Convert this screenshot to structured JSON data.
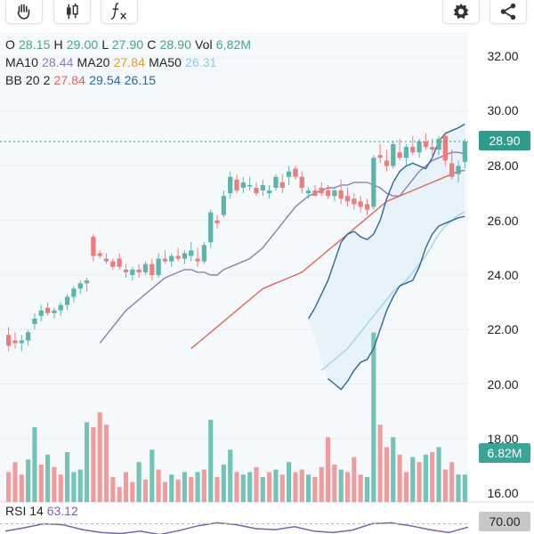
{
  "toolbar": {
    "buttons": [
      {
        "name": "drawing-hand-tool",
        "icon": "hand-icon"
      },
      {
        "name": "chart-type",
        "icon": "candlestick-icon"
      },
      {
        "name": "indicators",
        "icon": "function-icon"
      },
      {
        "name": "settings",
        "icon": "gear-icon"
      },
      {
        "name": "share",
        "icon": "share-icon"
      }
    ]
  },
  "legend": {
    "o_label": "O",
    "o_value": "28.15",
    "h_label": "H",
    "h_value": "29.00",
    "l_label": "L",
    "l_value": "27.90",
    "c_label": "C",
    "c_value": "28.90",
    "vol_label": "Vol",
    "vol_value": "6,82M",
    "ma10_label": "MA10",
    "ma10_value": "28.44",
    "ma20_label": "MA20",
    "ma20_value": "27.84",
    "ma50_label": "MA50",
    "ma50_value": "26.31",
    "bb_label": "BB 20 2",
    "bb_mid": "27.84",
    "bb_upper": "29.54",
    "bb_lower": "26.15",
    "rsi_label": "RSI 14",
    "rsi_value": "63.12"
  },
  "colors": {
    "up": "#5cb5aa",
    "down": "#ee7c7c",
    "up_volume": "#74c3b7",
    "down_volume": "#f19c9c",
    "ma10": "#8f7bb8",
    "ma20": "#e0665a",
    "ma50": "#9fd3e9",
    "bb_band": "#2c6796",
    "bb_fill": "#e7f1f8",
    "rsi": "#7d5fb0",
    "price_badge": "#2d9c8c",
    "volume_badge": "#3aa597"
  },
  "price_axis": {
    "labels": [
      "32.00",
      "30.00",
      "28.00",
      "26.00",
      "24.00",
      "22.00",
      "20.00",
      "18.00",
      "16.00"
    ],
    "current_price": "28.90",
    "current_volume": "6.82M",
    "rsi_level": "70.00"
  },
  "chart_data": {
    "type": "candlestick",
    "ylim": [
      16.0,
      33.0
    ],
    "candles": [
      [
        21.8,
        22.1,
        21.2,
        21.4
      ],
      [
        21.6,
        21.9,
        21.3,
        21.5
      ],
      [
        21.5,
        21.8,
        21.2,
        21.6
      ],
      [
        21.6,
        22.0,
        21.4,
        21.9
      ],
      [
        22.2,
        22.6,
        22.0,
        22.4
      ],
      [
        22.5,
        22.9,
        22.3,
        22.7
      ],
      [
        22.8,
        23.0,
        22.5,
        22.6
      ],
      [
        22.6,
        22.8,
        22.4,
        22.7
      ],
      [
        22.7,
        23.0,
        22.5,
        22.9
      ],
      [
        22.9,
        23.3,
        22.7,
        23.2
      ],
      [
        23.2,
        23.6,
        23.0,
        23.5
      ],
      [
        23.5,
        23.8,
        23.3,
        23.7
      ],
      [
        23.7,
        23.9,
        23.4,
        23.8
      ],
      [
        25.4,
        25.5,
        24.5,
        24.7
      ],
      [
        24.8,
        24.9,
        24.6,
        24.7
      ],
      [
        24.6,
        24.8,
        24.4,
        24.5
      ],
      [
        24.5,
        24.6,
        24.2,
        24.3
      ],
      [
        24.6,
        24.8,
        24.2,
        24.3
      ],
      [
        24.2,
        24.4,
        23.9,
        24.1
      ],
      [
        24.0,
        24.3,
        23.8,
        24.2
      ],
      [
        24.2,
        24.4,
        23.9,
        24.1
      ],
      [
        24.1,
        24.5,
        24.0,
        24.4
      ],
      [
        24.4,
        24.6,
        23.8,
        24.0
      ],
      [
        24.0,
        24.8,
        23.9,
        24.6
      ],
      [
        24.6,
        24.9,
        24.4,
        24.5
      ],
      [
        24.5,
        24.8,
        24.3,
        24.7
      ],
      [
        24.7,
        25.0,
        24.5,
        24.6
      ],
      [
        24.6,
        24.9,
        24.4,
        24.8
      ],
      [
        24.7,
        25.2,
        24.5,
        24.9
      ],
      [
        24.6,
        25.0,
        24.3,
        24.5
      ],
      [
        24.5,
        25.2,
        24.4,
        25.1
      ],
      [
        25.2,
        26.4,
        25.0,
        26.3
      ],
      [
        26.0,
        26.2,
        25.7,
        25.9
      ],
      [
        26.2,
        27.1,
        26.1,
        26.9
      ],
      [
        27.0,
        27.8,
        26.8,
        27.6
      ],
      [
        27.5,
        27.7,
        27.0,
        27.1
      ],
      [
        27.2,
        27.6,
        27.0,
        27.4
      ],
      [
        27.3,
        27.6,
        27.1,
        27.3
      ],
      [
        27.2,
        27.4,
        26.9,
        27.0
      ],
      [
        27.1,
        27.5,
        26.9,
        27.3
      ],
      [
        27.0,
        27.3,
        26.8,
        27.1
      ],
      [
        27.2,
        27.7,
        27.1,
        27.6
      ],
      [
        27.4,
        27.7,
        27.0,
        27.2
      ],
      [
        27.6,
        28.0,
        27.3,
        27.8
      ],
      [
        27.9,
        28.0,
        27.5,
        27.6
      ],
      [
        27.6,
        27.8,
        27.0,
        27.2
      ],
      [
        27.0,
        27.2,
        26.8,
        27.1
      ],
      [
        27.1,
        27.3,
        26.9,
        26.9
      ],
      [
        27.2,
        27.4,
        26.9,
        27.0
      ],
      [
        27.1,
        27.3,
        26.8,
        26.9
      ],
      [
        26.9,
        27.2,
        26.7,
        27.1
      ],
      [
        27.1,
        27.5,
        26.6,
        26.8
      ],
      [
        26.9,
        27.2,
        26.5,
        26.7
      ],
      [
        26.8,
        27.0,
        26.4,
        26.6
      ],
      [
        26.7,
        26.9,
        26.3,
        26.5
      ],
      [
        26.6,
        26.8,
        26.2,
        26.4
      ],
      [
        26.5,
        28.4,
        26.4,
        28.3
      ],
      [
        28.4,
        28.8,
        28.1,
        28.3
      ],
      [
        28.2,
        28.6,
        27.8,
        28.0
      ],
      [
        28.0,
        28.9,
        27.9,
        28.8
      ],
      [
        28.5,
        29.0,
        28.2,
        28.3
      ],
      [
        28.3,
        28.8,
        28.0,
        28.7
      ],
      [
        28.7,
        29.1,
        28.4,
        28.5
      ],
      [
        28.5,
        29.0,
        28.3,
        28.9
      ],
      [
        28.9,
        29.2,
        28.6,
        28.7
      ],
      [
        28.7,
        29.0,
        28.3,
        28.6
      ],
      [
        28.6,
        29.1,
        28.4,
        29.0
      ],
      [
        29.1,
        29.2,
        28.0,
        28.2
      ],
      [
        28.1,
        28.6,
        27.5,
        27.6
      ],
      [
        27.7,
        28.2,
        27.4,
        28.0
      ],
      [
        28.15,
        29.0,
        27.9,
        28.9
      ]
    ],
    "volumes": [
      [
        1.2,
        1
      ],
      [
        1.6,
        1
      ],
      [
        1.1,
        1
      ],
      [
        1.7,
        0
      ],
      [
        3.0,
        0
      ],
      [
        1.5,
        1
      ],
      [
        1.9,
        0
      ],
      [
        1.4,
        1
      ],
      [
        1.1,
        1
      ],
      [
        2.0,
        0
      ],
      [
        1.2,
        0
      ],
      [
        1.3,
        0
      ],
      [
        3.2,
        0
      ],
      [
        3.0,
        1
      ],
      [
        3.6,
        1
      ],
      [
        3.1,
        1
      ],
      [
        1.0,
        1
      ],
      [
        0.6,
        1
      ],
      [
        1.2,
        1
      ],
      [
        0.8,
        1
      ],
      [
        1.6,
        0
      ],
      [
        0.9,
        1
      ],
      [
        2.1,
        0
      ],
      [
        1.3,
        1
      ],
      [
        0.8,
        1
      ],
      [
        1.1,
        0
      ],
      [
        0.9,
        1
      ],
      [
        1.2,
        0
      ],
      [
        1.0,
        1
      ],
      [
        1.2,
        0
      ],
      [
        1.3,
        1
      ],
      [
        3.3,
        0
      ],
      [
        1.0,
        1
      ],
      [
        1.5,
        0
      ],
      [
        2.1,
        0
      ],
      [
        1.2,
        1
      ],
      [
        1.1,
        0
      ],
      [
        1.2,
        0
      ],
      [
        1.4,
        1
      ],
      [
        1.0,
        0
      ],
      [
        1.2,
        1
      ],
      [
        1.3,
        0
      ],
      [
        1.1,
        1
      ],
      [
        1.6,
        0
      ],
      [
        1.2,
        1
      ],
      [
        1.3,
        1
      ],
      [
        1.1,
        0
      ],
      [
        1.0,
        1
      ],
      [
        1.4,
        1
      ],
      [
        2.6,
        1
      ],
      [
        1.5,
        1
      ],
      [
        1.3,
        0
      ],
      [
        1.2,
        1
      ],
      [
        1.8,
        1
      ],
      [
        1.1,
        1
      ],
      [
        1.0,
        0
      ],
      [
        6.8,
        0
      ],
      [
        3.1,
        1
      ],
      [
        2.2,
        1
      ],
      [
        2.6,
        0
      ],
      [
        1.9,
        1
      ],
      [
        1.2,
        1
      ],
      [
        1.8,
        0
      ],
      [
        1.6,
        1
      ],
      [
        1.9,
        0
      ],
      [
        2.0,
        1
      ],
      [
        2.2,
        0
      ],
      [
        1.3,
        1
      ],
      [
        1.6,
        1
      ],
      [
        1.1,
        0
      ],
      [
        1.1,
        0
      ]
    ],
    "ma10": [
      21.5,
      21.8,
      22.1,
      22.4,
      22.7,
      22.9,
      23.1,
      23.3,
      23.5,
      23.7,
      23.9,
      24.0,
      24.1,
      24.2,
      24.2,
      24.1,
      24.1,
      24.0,
      24.0,
      24.2,
      24.3,
      24.4,
      24.5,
      24.6,
      24.8,
      25.0,
      25.3,
      25.6,
      25.9,
      26.2,
      26.5,
      26.7,
      26.9,
      27.0,
      27.1,
      27.2,
      27.2,
      27.3,
      27.3,
      27.4,
      27.4,
      27.4,
      27.3,
      27.2,
      27.0,
      26.9,
      26.9,
      27.2,
      27.5,
      27.8,
      28.0,
      28.2,
      28.3,
      28.4,
      28.5,
      28.5,
      28.44
    ],
    "ma20": [
      21.3,
      21.5,
      21.7,
      21.9,
      22.1,
      22.3,
      22.5,
      22.7,
      22.9,
      23.1,
      23.3,
      23.5,
      23.6,
      23.7,
      23.8,
      23.9,
      24.0,
      24.1,
      24.3,
      24.5,
      24.7,
      24.9,
      25.1,
      25.3,
      25.5,
      25.7,
      25.9,
      26.1,
      26.3,
      26.5,
      26.7,
      26.8,
      26.9,
      27.0,
      27.1,
      27.2,
      27.3,
      27.4,
      27.5,
      27.6,
      27.7,
      27.8,
      27.84
    ],
    "ma50": [
      20.5,
      20.7,
      20.9,
      21.1,
      21.3,
      21.6,
      21.9,
      22.2,
      22.5,
      22.8,
      23.1,
      23.4,
      23.6,
      23.8,
      24.1,
      24.4,
      24.7,
      25.1,
      25.5,
      25.8,
      26.0,
      26.2,
      26.31
    ],
    "bb_upper": [
      22.4,
      22.8,
      23.3,
      23.8,
      24.5,
      25.2,
      25.5,
      25.6,
      25.4,
      25.3,
      25.5,
      26.0,
      26.8,
      27.4,
      27.8,
      28.0,
      28.1,
      28.0,
      27.9,
      28.3,
      28.9,
      29.2,
      29.3,
      29.4,
      29.54
    ],
    "bb_lower": [
      20.2,
      20.0,
      19.8,
      20.1,
      20.5,
      20.8,
      20.9,
      21.3,
      22.0,
      22.7,
      23.2,
      23.6,
      23.7,
      23.8,
      24.3,
      25.0,
      25.5,
      25.8,
      25.9,
      26.0,
      26.1,
      26.15
    ],
    "rsi": [
      55,
      62,
      70,
      68,
      58,
      52,
      50,
      55,
      48,
      56,
      66,
      72,
      68,
      60,
      58,
      64,
      55,
      52,
      57,
      70,
      72,
      66,
      58,
      52,
      63.12
    ]
  }
}
